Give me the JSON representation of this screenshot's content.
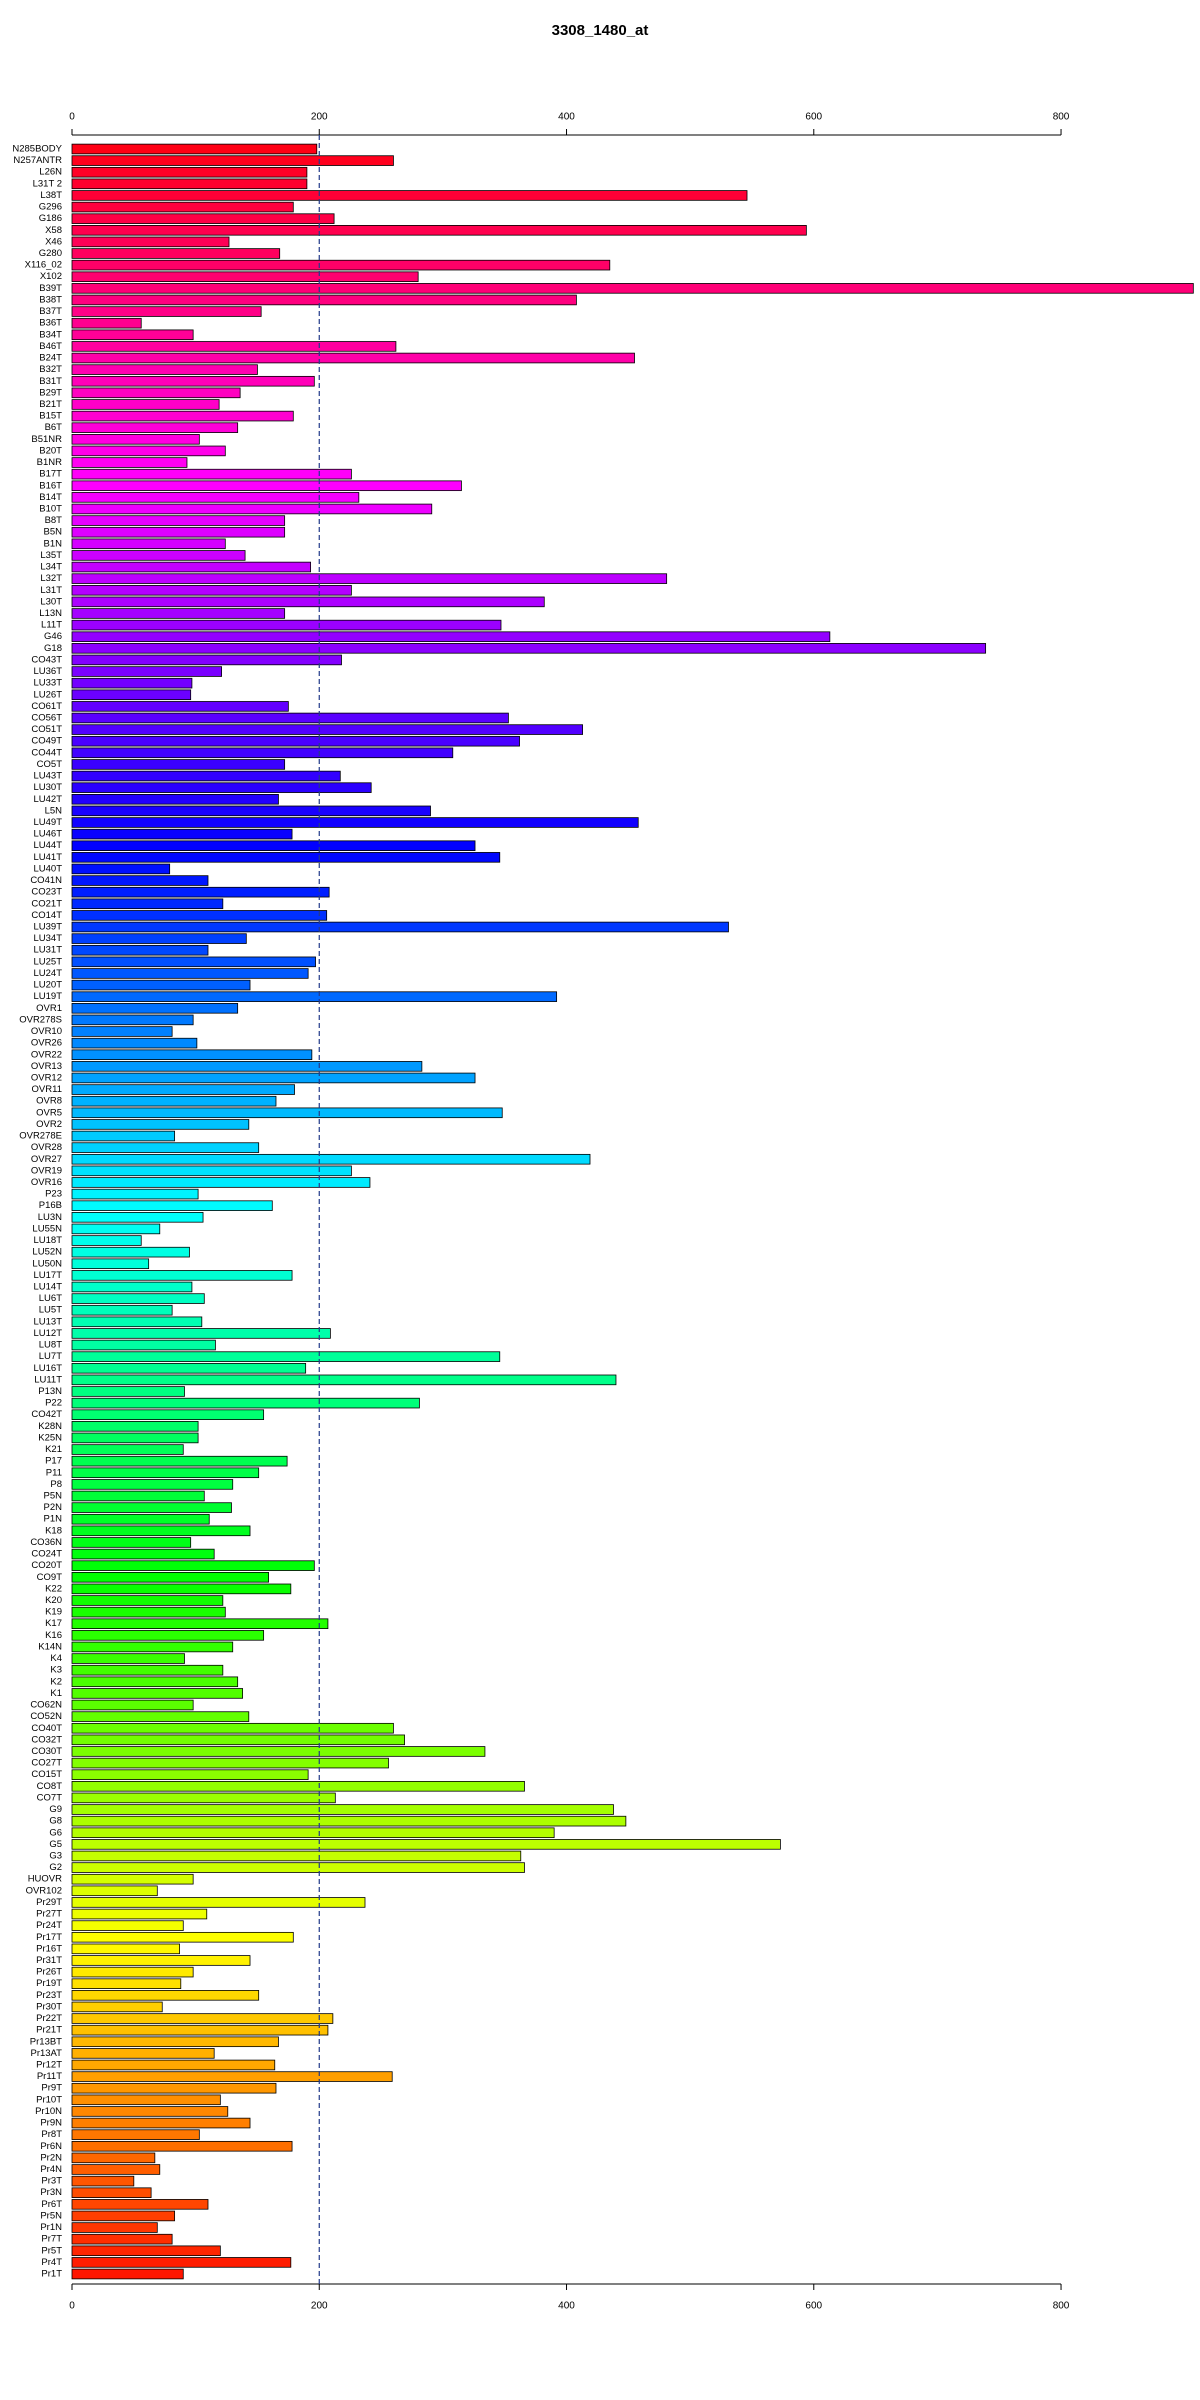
{
  "chart_data": {
    "type": "bar",
    "orientation": "horizontal",
    "title": "3308_1480_at",
    "categories": [
      "N285BODY",
      "N257ANTR",
      "L26N",
      "L31T 2",
      "L38T",
      "G296",
      "G186",
      "X58",
      "X46",
      "G280",
      "X116_02",
      "X102",
      "B39T",
      "B38T",
      "B37T",
      "B36T",
      "B34T",
      "B46T",
      "B24T",
      "B32T",
      "B31T",
      "B29T",
      "B21T",
      "B15T",
      "B6T",
      "B51NR",
      "B20T",
      "B1NR",
      "B17T",
      "B16T",
      "B14T",
      "B10T",
      "B8T",
      "B5N",
      "B1N",
      "L35T",
      "L34T",
      "L32T",
      "L31T",
      "L30T",
      "L13N",
      "L11T",
      "G46",
      "G18",
      "CO43T",
      "LU36T",
      "LU33T",
      "LU26T",
      "CO61T",
      "CO56T",
      "CO51T",
      "CO49T",
      "CO44T",
      "CO5T",
      "LU43T",
      "LU30T",
      "LU42T",
      "L5N",
      "LU49T",
      "LU46T",
      "LU44T",
      "LU41T",
      "LU40T",
      "CO41N",
      "CO23T",
      "CO21T",
      "CO14T",
      "LU39T",
      "LU34T",
      "LU31T",
      "LU25T",
      "LU24T",
      "LU20T",
      "LU19T",
      "OVR1",
      "OVR278S",
      "OVR10",
      "OVR26",
      "OVR22",
      "OVR13",
      "OVR12",
      "OVR11",
      "OVR8",
      "OVR5",
      "OVR2",
      "OVR278E",
      "OVR28",
      "OVR27",
      "OVR19",
      "OVR16",
      "P23",
      "P16B",
      "LU3N",
      "LU55N",
      "LU18T",
      "LU52N",
      "LU50N",
      "LU17T",
      "LU14T",
      "LU6T",
      "LU5T",
      "LU13T",
      "LU12T",
      "LU8T",
      "LU7T",
      "LU16T",
      "LU11T",
      "P13N",
      "P22",
      "CO42T",
      "K28N",
      "K25N",
      "K21",
      "P17",
      "P11",
      "P8",
      "P5N",
      "P2N",
      "P1N",
      "K18",
      "CO36N",
      "CO24T",
      "CO20T",
      "CO9T",
      "K22",
      "K20",
      "K19",
      "K17",
      "K16",
      "K14N",
      "K4",
      "K3",
      "K2",
      "K1",
      "CO62N",
      "CO52N",
      "CO40T",
      "CO32T",
      "CO30T",
      "CO27T",
      "CO15T",
      "CO8T",
      "CO7T",
      "G9",
      "G8",
      "G6",
      "G5",
      "G3",
      "G2",
      "HUOVR",
      "OVR102",
      "Pr29T",
      "Pr27T",
      "Pr24T",
      "Pr17T",
      "Pr16T",
      "Pr31T",
      "Pr26T",
      "Pr19T",
      "Pr23T",
      "Pr30T",
      "Pr22T",
      "Pr21T",
      "Pr13BT",
      "Pr13AT",
      "Pr12T",
      "Pr11T",
      "Pr9T",
      "Pr10T",
      "Pr10N",
      "Pr9N",
      "Pr8T",
      "Pr6N",
      "Pr2N",
      "Pr4N",
      "Pr3T",
      "Pr3N",
      "Pr6T",
      "Pr5N",
      "Pr1N",
      "Pr7T",
      "Pr5T",
      "Pr4T",
      "Pr1T"
    ],
    "values": [
      198,
      260,
      190,
      190,
      546,
      179,
      212,
      594,
      127,
      168,
      435,
      280,
      907,
      408,
      153,
      56,
      98,
      262,
      455,
      150,
      196,
      136,
      119,
      179,
      134,
      103,
      124,
      93,
      226,
      315,
      232,
      291,
      172,
      172,
      124,
      140,
      193,
      481,
      226,
      382,
      172,
      347,
      613,
      739,
      218,
      121,
      97,
      96,
      175,
      353,
      413,
      362,
      308,
      172,
      217,
      242,
      167,
      290,
      458,
      178,
      326,
      346,
      79,
      110,
      208,
      122,
      206,
      531,
      141,
      110,
      197,
      191,
      144,
      392,
      134,
      98,
      81,
      101,
      194,
      283,
      326,
      180,
      165,
      348,
      143,
      83,
      151,
      419,
      226,
      241,
      102,
      162,
      106,
      71,
      56,
      95,
      62,
      178,
      97,
      107,
      81,
      105,
      209,
      116,
      346,
      189,
      440,
      91,
      281,
      155,
      102,
      102,
      90,
      174,
      151,
      130,
      107,
      129,
      111,
      144,
      96,
      115,
      196,
      159,
      177,
      122,
      124,
      207,
      155,
      130,
      91,
      122,
      134,
      138,
      98,
      143,
      260,
      269,
      334,
      256,
      191,
      366,
      213,
      438,
      448,
      390,
      573,
      363,
      366,
      98,
      69,
      237,
      109,
      90,
      179,
      87,
      144,
      98,
      88,
      151,
      73,
      211,
      207,
      167,
      115,
      164,
      259,
      165,
      120,
      126,
      144,
      103,
      178,
      67,
      71,
      50,
      64,
      110,
      83,
      69,
      81,
      120,
      177,
      90
    ],
    "bar_hues": [
      355,
      5
    ],
    "xlim": [
      0,
      907
    ],
    "xticks": [
      0,
      200,
      400,
      600,
      800
    ],
    "vline": 200
  }
}
